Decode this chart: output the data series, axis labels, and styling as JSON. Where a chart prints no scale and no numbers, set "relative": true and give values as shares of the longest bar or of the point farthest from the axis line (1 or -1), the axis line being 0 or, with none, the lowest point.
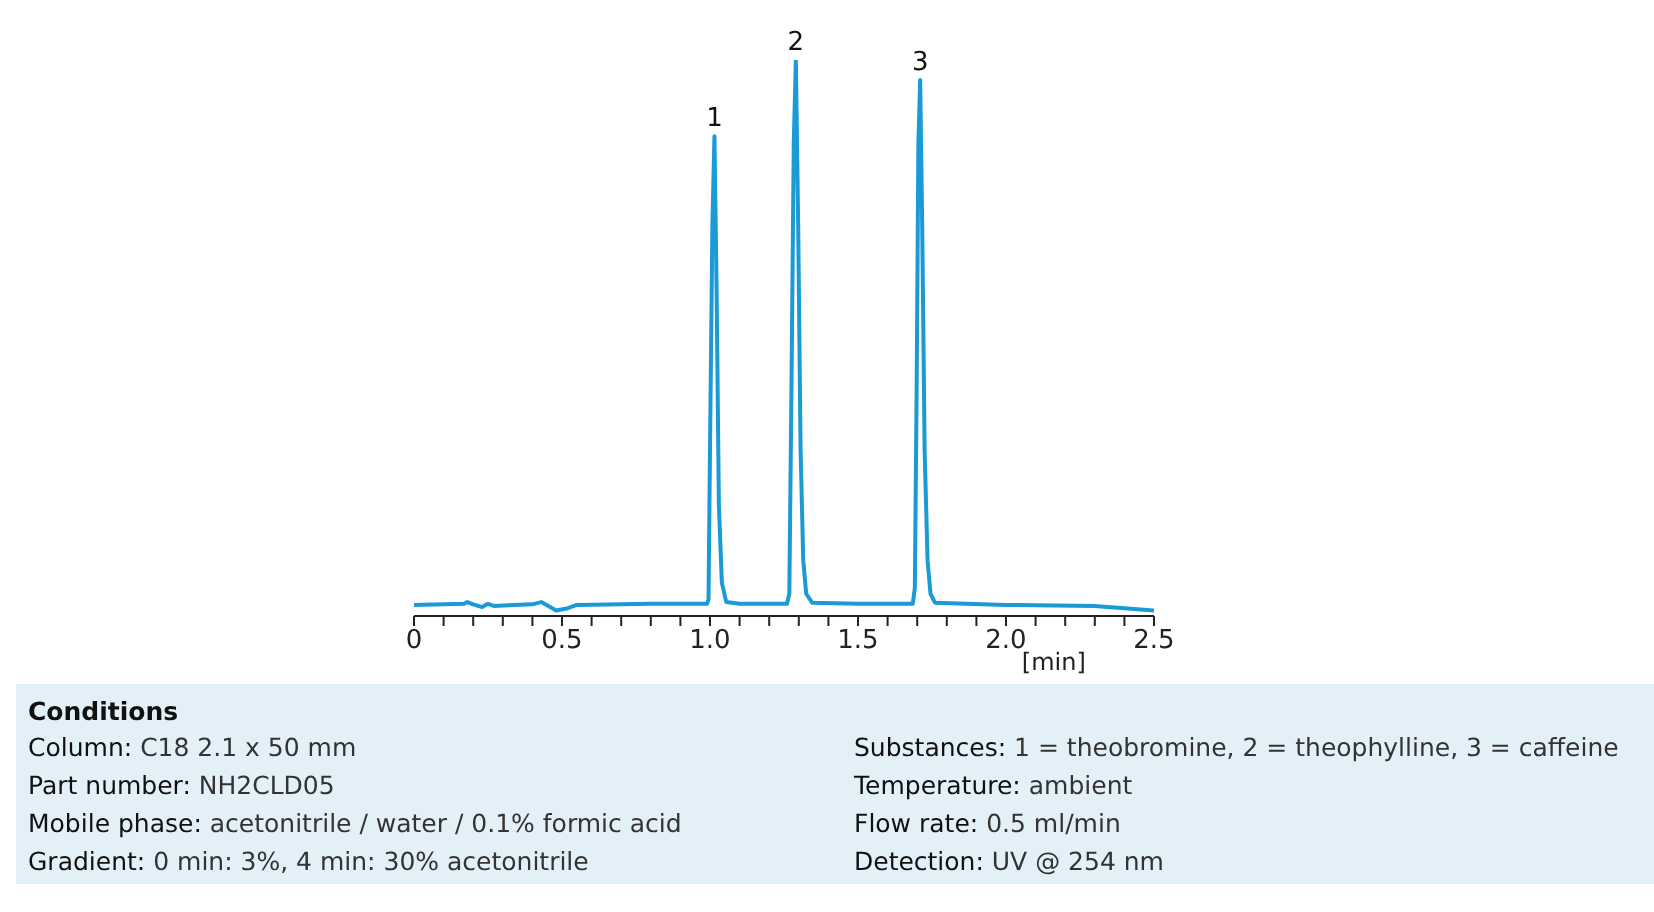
{
  "chart_data": {
    "type": "line",
    "relative": true,
    "xlabel": "[min]",
    "xlim": [
      0,
      2.5
    ],
    "xticks": [
      0,
      {
        "value": 0.1,
        "label": null
      },
      {
        "value": 0.2,
        "label": null
      },
      {
        "value": 0.3,
        "label": null
      },
      {
        "value": 0.4,
        "label": null
      },
      {
        "value": 0.5,
        "label": "0.5"
      },
      {
        "value": 0.6,
        "label": null
      },
      {
        "value": 0.7,
        "label": null
      },
      {
        "value": 0.8,
        "label": null
      },
      {
        "value": 0.9,
        "label": null
      },
      {
        "value": 1,
        "label": "1.0"
      },
      {
        "value": 1.1,
        "label": null
      },
      {
        "value": 1.2,
        "label": null
      },
      {
        "value": 1.3,
        "label": null
      },
      {
        "value": 1.4,
        "label": null
      },
      {
        "value": 1.5,
        "label": "1.5"
      },
      {
        "value": 1.6,
        "label": null
      },
      {
        "value": 1.7,
        "label": null
      },
      {
        "value": 1.8,
        "label": null
      },
      {
        "value": 1.9,
        "label": null
      },
      {
        "value": 2,
        "label": "2.0"
      },
      {
        "value": 2.1,
        "label": null
      },
      {
        "value": 2.2,
        "label": null
      },
      {
        "value": 2.3,
        "label": null
      },
      {
        "value": 2.4,
        "label": null
      },
      {
        "value": 2.5,
        "label": "2.5"
      }
    ],
    "x": [
      0,
      0.1,
      0.17,
      0.18,
      0.2,
      0.23,
      0.25,
      0.27,
      0.3,
      0.4,
      0.43,
      0.46,
      0.48,
      0.52,
      0.55,
      0.8,
      0.99,
      0.995,
      1.0,
      1.008,
      1.015,
      1.022,
      1.03,
      1.04,
      1.055,
      1.1,
      1.26,
      1.268,
      1.275,
      1.283,
      1.29,
      1.298,
      1.306,
      1.315,
      1.325,
      1.345,
      1.5,
      1.685,
      1.692,
      1.698,
      1.704,
      1.71,
      1.717,
      1.725,
      1.735,
      1.745,
      1.76,
      2.0,
      2.3,
      2.4,
      2.5
    ],
    "series": [
      {
        "color": "#1a9ad6",
        "values": [
          0.02,
          0.021,
          0.022,
          0.025,
          0.021,
          0.016,
          0.022,
          0.018,
          0.019,
          0.021,
          0.025,
          0.016,
          0.01,
          0.014,
          0.02,
          0.022,
          0.022,
          0.03,
          0.3,
          0.7,
          0.863,
          0.6,
          0.2,
          0.06,
          0.025,
          0.022,
          0.022,
          0.04,
          0.4,
          0.85,
          1.0,
          0.7,
          0.3,
          0.1,
          0.04,
          0.024,
          0.022,
          0.022,
          0.05,
          0.4,
          0.85,
          0.964,
          0.7,
          0.3,
          0.1,
          0.04,
          0.024,
          0.02,
          0.018,
          0.014,
          0.01
        ]
      }
    ],
    "marker": "none",
    "annotations": [
      {
        "text": "1",
        "x": 1.015,
        "y": 0.863
      },
      {
        "text": "2",
        "x": 1.29,
        "y": 1.0
      },
      {
        "text": "3",
        "x": 1.71,
        "y": 0.964
      },
      "Conditions",
      "Column: C18 2.1 x 50 mm",
      "Substances: 1 = theobromine, 2 = theophylline, 3 = caffeine",
      "Part number: NH2CLD05",
      "Temperature: ambient",
      "Mobile phase: acetonitrile / water / 0.1% formic acid",
      "Flow rate: 0.5 ml/min",
      "Gradient: 0 min: 3%, 4 min: 30% acetonitrile",
      "Detection: UV @ 254 nm"
    ]
  }
}
